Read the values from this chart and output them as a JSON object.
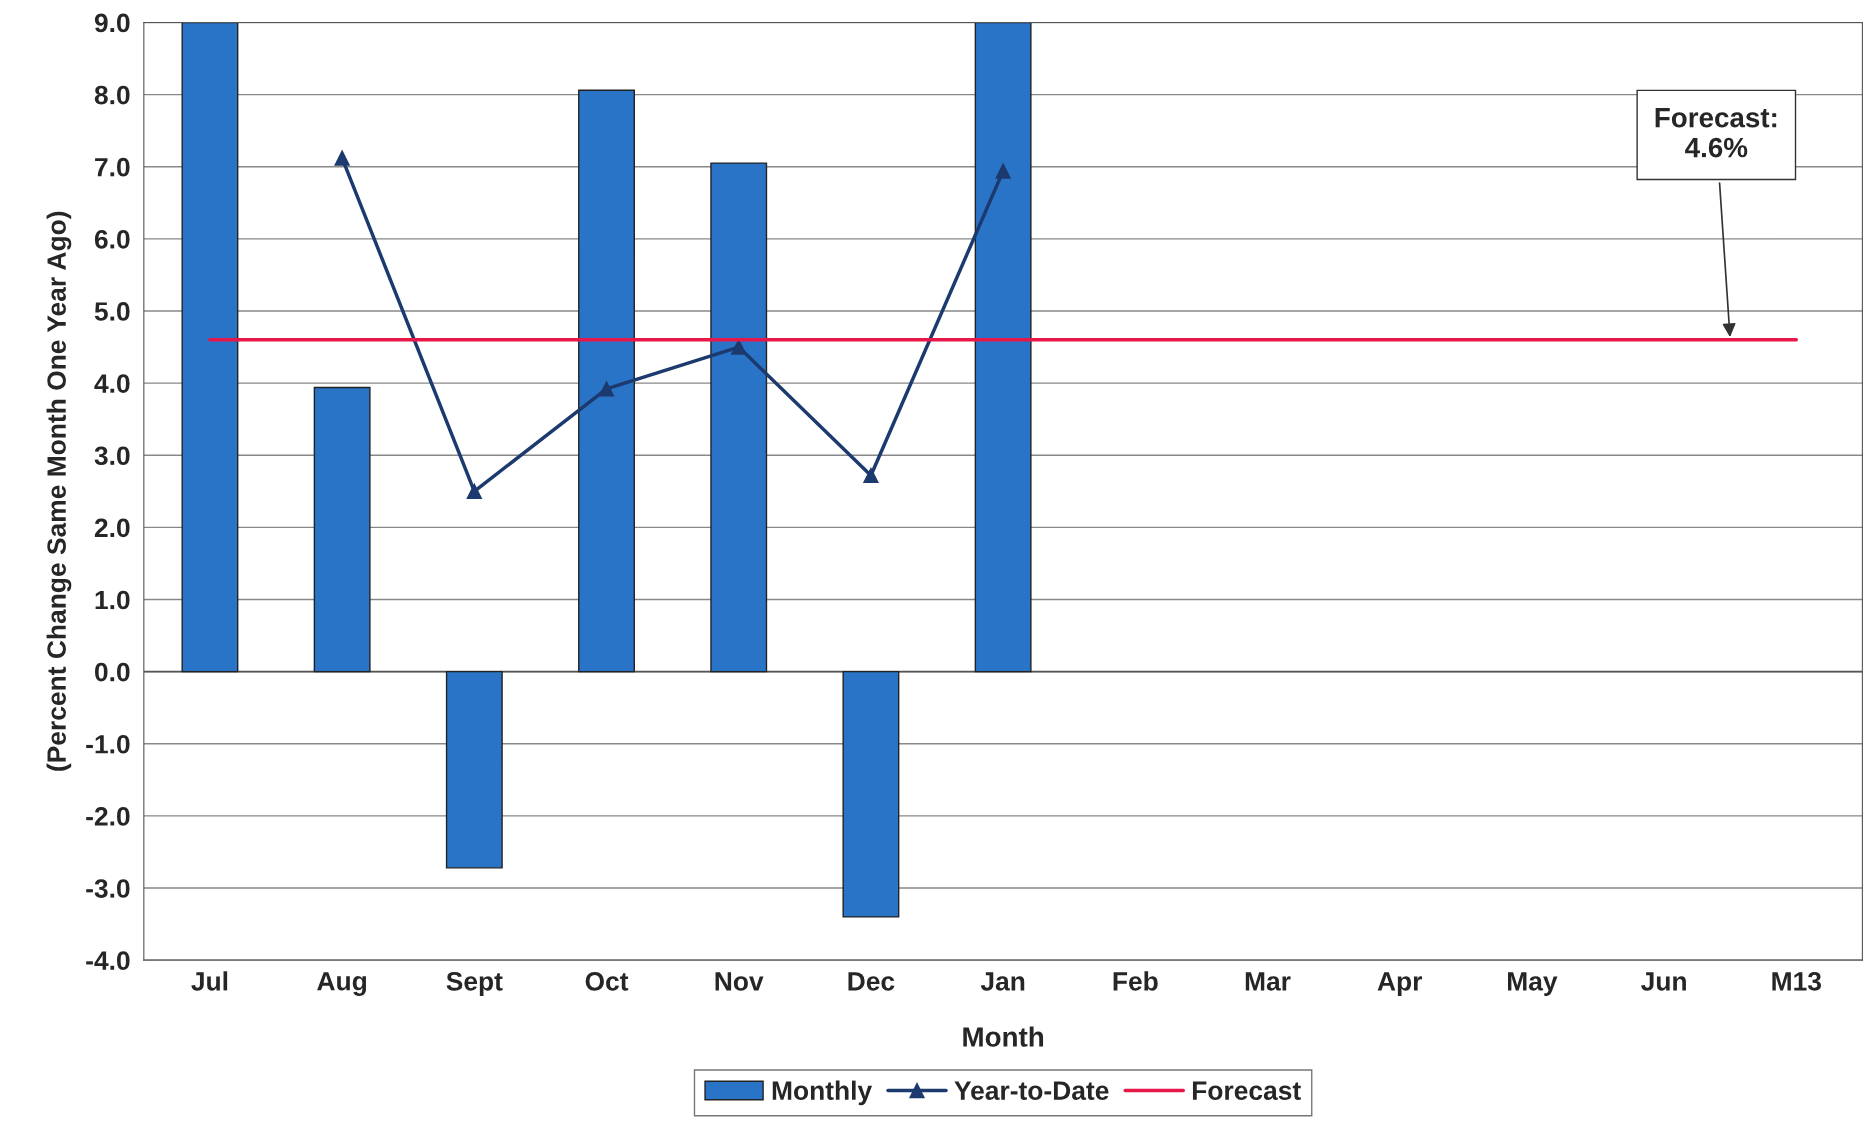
{
  "chart_data": {
    "type": "bar",
    "xlabel": "Month",
    "ylabel": "(Percent Change Same Month One Year Ago)",
    "categories": [
      "Jul",
      "Aug",
      "Sept",
      "Oct",
      "Nov",
      "Dec",
      "Jan",
      "Feb",
      "Mar",
      "Apr",
      "May",
      "Jun",
      "M13"
    ],
    "series": [
      {
        "name": "Monthly",
        "color": "#2a74c8",
        "values": [
          9.0,
          3.94,
          -2.72,
          8.06,
          7.05,
          -3.4,
          9.0,
          null,
          null,
          null,
          null,
          null,
          null
        ]
      },
      {
        "name": "Year-to-Date",
        "type": "line",
        "color": "#1c3a6e",
        "marker": "triangle",
        "values": [
          null,
          7.12,
          2.5,
          3.92,
          4.5,
          2.72,
          6.94,
          null,
          null,
          null,
          null,
          null,
          null
        ]
      },
      {
        "name": "Forecast",
        "type": "line",
        "color": "#e8174a",
        "values": [
          4.6,
          4.6,
          4.6,
          4.6,
          4.6,
          4.6,
          4.6,
          4.6,
          4.6,
          4.6,
          4.6,
          4.6,
          4.6
        ]
      }
    ],
    "ylim": [
      -4,
      9
    ],
    "yticks": [
      {
        "value": -4,
        "label": "-4.0"
      },
      {
        "value": -3,
        "label": "-3.0"
      },
      {
        "value": -2,
        "label": "-2.0"
      },
      {
        "value": -1,
        "label": "-1.0"
      },
      {
        "value": 0,
        "label": "0.0"
      },
      {
        "value": 1,
        "label": "1.0"
      },
      {
        "value": 2,
        "label": "2.0"
      },
      {
        "value": 3,
        "label": "3.0"
      },
      {
        "value": 4,
        "label": "4.0"
      },
      {
        "value": 5,
        "label": "5.0"
      },
      {
        "value": 6,
        "label": "6.0"
      },
      {
        "value": 7,
        "label": "7.0"
      },
      {
        "value": 8,
        "label": "8.0"
      },
      {
        "value": 9,
        "label": "9.0"
      }
    ],
    "grid": "y",
    "legend": "bottom",
    "annotations": [
      "Forecast:\n4.6%"
    ]
  }
}
